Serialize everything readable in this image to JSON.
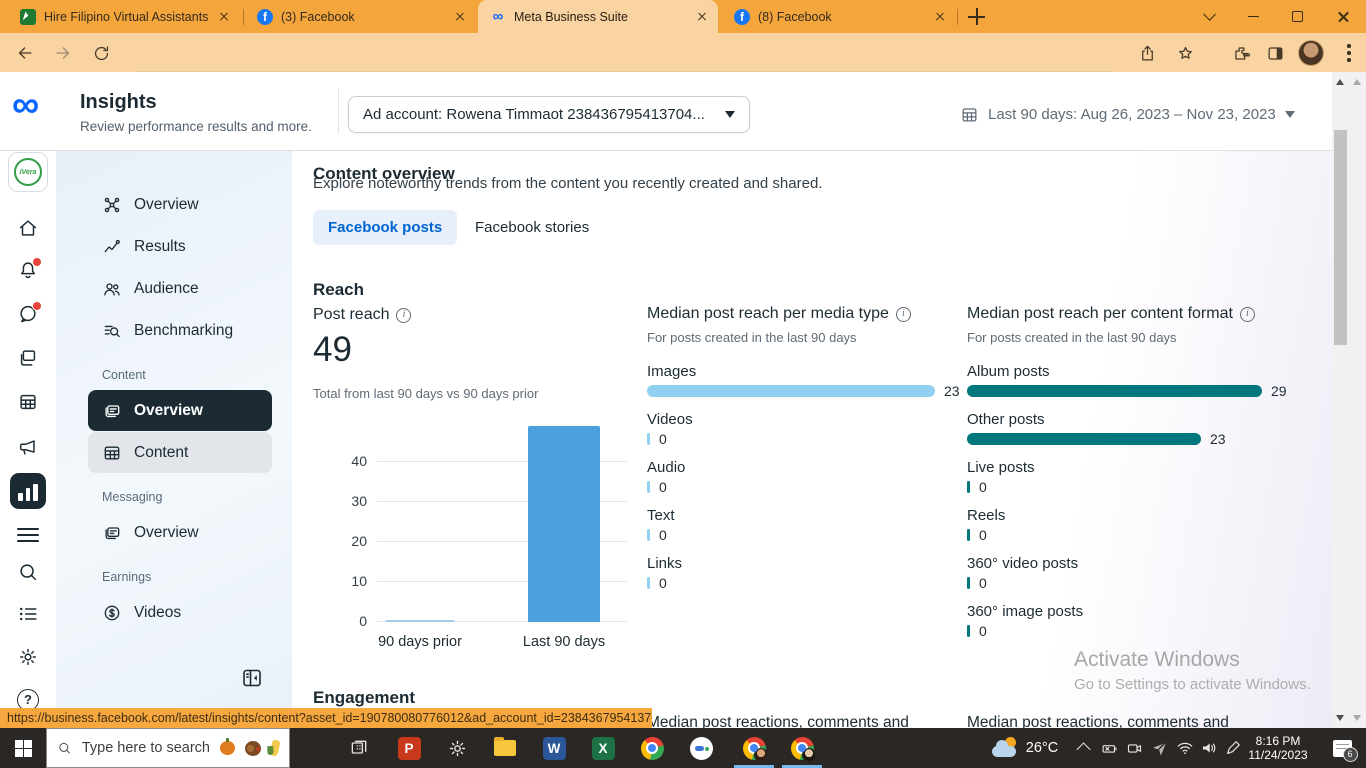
{
  "browser": {
    "tabs": [
      {
        "title": "Hire Filipino Virtual Assistants | F"
      },
      {
        "title": "(3) Facebook"
      },
      {
        "title": "Meta Business Suite"
      },
      {
        "title": "(8) Facebook"
      }
    ],
    "url": "business.facebook.com/latest/insights/content_summary?asset_id=190780080776012&ad_account_id=23843679541370435",
    "status_url": "https://business.facebook.com/latest/insights/content?asset_id=190780080776012&ad_account_id=23843679541370435"
  },
  "header": {
    "title": "Insights",
    "subtitle": "Review performance results and more.",
    "ad_account_label": "Ad account: Rowena Timmaot 238436795413704...",
    "date_range": "Last 90 days: Aug 26, 2023 – Nov 23, 2023"
  },
  "sidebar": {
    "items": [
      {
        "label": "Overview"
      },
      {
        "label": "Results"
      },
      {
        "label": "Audience"
      },
      {
        "label": "Benchmarking"
      }
    ],
    "content_section": "Content",
    "content_overview": "Overview",
    "content_content": "Content",
    "messaging_section": "Messaging",
    "messaging_overview": "Overview",
    "earnings_section": "Earnings",
    "earnings_videos": "Videos"
  },
  "main": {
    "page_title": "Content overview",
    "page_subtitle": "Explore noteworthy trends from the content you recently created and shared.",
    "tab_posts": "Facebook posts",
    "tab_stories": "Facebook stories",
    "reach_heading": "Reach",
    "post_reach": {
      "title": "Post reach",
      "value": "49",
      "caption": "Total from last 90 days vs 90 days prior"
    },
    "media_type": {
      "title": "Median post reach per media type",
      "subtitle": "For posts created in the last 90 days",
      "max": 23,
      "rows": [
        {
          "label": "Images",
          "value": 23
        },
        {
          "label": "Videos",
          "value": 0
        },
        {
          "label": "Audio",
          "value": 0
        },
        {
          "label": "Text",
          "value": 0
        },
        {
          "label": "Links",
          "value": 0
        }
      ]
    },
    "content_format": {
      "title": "Median post reach per content format",
      "subtitle": "For posts created in the last 90 days",
      "max": 29,
      "rows": [
        {
          "label": "Album posts",
          "value": 29
        },
        {
          "label": "Other posts",
          "value": 23
        },
        {
          "label": "Live posts",
          "value": 0
        },
        {
          "label": "Reels",
          "value": 0
        },
        {
          "label": "360° video posts",
          "value": 0
        },
        {
          "label": "360° image posts",
          "value": 0
        }
      ]
    },
    "engagement_heading": "Engagement",
    "engagement_partial_left": "Median post reactions, comments and",
    "engagement_partial_right": "Median post reactions, comments and"
  },
  "chart_data": [
    {
      "type": "bar",
      "title": "Post reach",
      "categories": [
        "90 days prior",
        "Last 90 days"
      ],
      "values": [
        0,
        49
      ],
      "xlabel": "",
      "ylabel": "",
      "ylim": [
        0,
        50
      ],
      "yticks": [
        0,
        10,
        20,
        30,
        40
      ],
      "grid": true,
      "note": "Total from last 90 days vs 90 days prior"
    },
    {
      "type": "bar",
      "orientation": "horizontal",
      "title": "Median post reach per media type",
      "categories": [
        "Images",
        "Videos",
        "Audio",
        "Text",
        "Links"
      ],
      "values": [
        23,
        0,
        0,
        0,
        0
      ]
    },
    {
      "type": "bar",
      "orientation": "horizontal",
      "title": "Median post reach per content format",
      "categories": [
        "Album posts",
        "Other posts",
        "Live posts",
        "Reels",
        "360° video posts",
        "360° image posts"
      ],
      "values": [
        29,
        23,
        0,
        0,
        0,
        0
      ]
    }
  ],
  "watermark": {
    "line1": "Activate Windows",
    "line2": "Go to Settings to activate Windows."
  },
  "taskbar": {
    "search_placeholder": "Type here to search",
    "weather_temp": "26°C",
    "time": "8:16 PM",
    "date": "11/24/2023",
    "notification_count": "6"
  },
  "icons": {
    "meta_logo": "infinity glyph",
    "info": "circled i",
    "calendar": "grid calendar",
    "search": "magnifier",
    "gear": "settings gear",
    "bell": "notifications bell with red dot",
    "chat": "messages bubble with red dot"
  },
  "colors": {
    "tabstrip_orange": "#F4A63D",
    "toolbar_peach": "#FAD3A2",
    "accent_blue": "#0064D1",
    "bar_blue": "#4AA1DC",
    "bar_light_blue": "#8FCFF0",
    "bar_teal": "#00767D",
    "selected_dark": "#1C2B33",
    "status_orange": "#F6A73E"
  }
}
